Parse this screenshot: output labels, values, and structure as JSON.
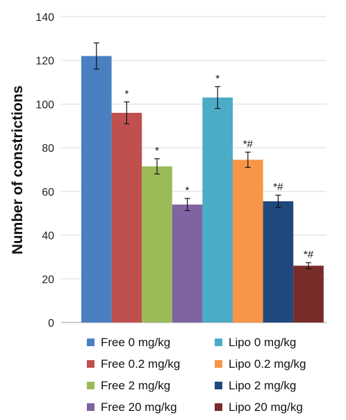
{
  "chart_data": {
    "type": "bar",
    "title": "",
    "xlabel": "",
    "ylabel": "Number of constrictions",
    "ylim": [
      0,
      140
    ],
    "yticks": [
      0,
      20,
      40,
      60,
      80,
      100,
      120,
      140
    ],
    "grid": true,
    "legend_position": "bottom",
    "series": [
      {
        "name": "Free 0 mg/kg",
        "value": 122,
        "error": 6,
        "annotation": "",
        "color": "#4a7fc1"
      },
      {
        "name": "Free 0.2 mg/kg",
        "value": 96,
        "error": 5,
        "annotation": "*",
        "color": "#c0504d"
      },
      {
        "name": "Free 2 mg/kg",
        "value": 71.5,
        "error": 3.5,
        "annotation": "*",
        "color": "#9bbb59"
      },
      {
        "name": "Free 20 mg/kg",
        "value": 54,
        "error": 2.8,
        "annotation": "*",
        "color": "#8064a2"
      },
      {
        "name": "Lipo 0 mg/kg",
        "value": 103,
        "error": 5,
        "annotation": "*",
        "color": "#4bacc6"
      },
      {
        "name": "Lipo 0.2 mg/kg",
        "value": 74.5,
        "error": 3.5,
        "annotation": "*#",
        "color": "#f79646"
      },
      {
        "name": "Lipo 2 mg/kg",
        "value": 55.5,
        "error": 2.8,
        "annotation": "*#",
        "color": "#1f497d"
      },
      {
        "name": "Lipo 20 mg/kg",
        "value": 26,
        "error": 1.4,
        "annotation": "*#",
        "color": "#772c2a"
      }
    ]
  }
}
